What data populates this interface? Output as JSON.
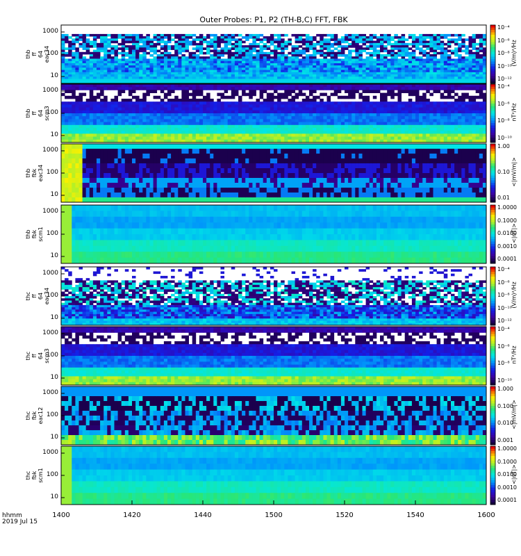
{
  "chart_data": {
    "type": "heatmap",
    "title": "Outer Probes: P1, P2 (TH-B,C) FFT, FBK",
    "x_axis": {
      "ticks": [
        "1400",
        "1420",
        "1440",
        "1500",
        "1520",
        "1540",
        "1600"
      ],
      "header_lines": [
        "hhmm",
        "2019 Jul 15"
      ]
    },
    "panels": [
      {
        "id": "thb-ff-eac34",
        "label_lines": [
          "thb",
          "ff",
          "64",
          "eac34"
        ],
        "y_ticks": [
          "1000",
          "100",
          "10"
        ],
        "colorbar_ticks": [
          "10⁻⁴",
          "10⁻⁶",
          "10⁻⁸",
          "10⁻¹⁰",
          "10⁻¹²"
        ],
        "colorbar_unit": "(V/m)²/Hz",
        "style": "eff"
      },
      {
        "id": "thb-ff-scm3",
        "label_lines": [
          "thb",
          "ff",
          "64",
          "scm3"
        ],
        "y_ticks": [
          "1000",
          "100",
          "10"
        ],
        "colorbar_ticks": [
          "10⁻⁴",
          "10⁻⁶",
          "10⁻⁸",
          "10⁻¹⁰"
        ],
        "colorbar_unit": "nT²/Hz",
        "style": "scm"
      },
      {
        "id": "thb-fbk-eac34",
        "label_lines": [
          "thb",
          "fbk",
          "eac34"
        ],
        "y_ticks": [
          "1000",
          "100",
          "10"
        ],
        "colorbar_ticks": [
          "1.00",
          "0.10",
          "0.01"
        ],
        "colorbar_unit": "<|mV/m|>",
        "style": "fbk_e"
      },
      {
        "id": "thb-fbk-scm1",
        "label_lines": [
          "thb",
          "fbk",
          "scm1"
        ],
        "y_ticks": [
          "1000",
          "100",
          "10"
        ],
        "colorbar_ticks": [
          "1.0000",
          "0.1000",
          "0.0100",
          "0.0010",
          "0.0001"
        ],
        "colorbar_unit": "<|nT|>",
        "style": "fbk_b"
      },
      {
        "id": "thc-ff-eac34",
        "label_lines": [
          "thc",
          "ff",
          "64",
          "eac34"
        ],
        "y_ticks": [
          "1000",
          "100",
          "10"
        ],
        "colorbar_ticks": [
          "10⁻⁴",
          "10⁻⁶",
          "10⁻⁸",
          "10⁻¹⁰",
          "10⁻¹²"
        ],
        "colorbar_unit": "(V/m)²/Hz",
        "style": "eff2"
      },
      {
        "id": "thc-ff-scm3",
        "label_lines": [
          "thc",
          "ff",
          "64",
          "scm3"
        ],
        "y_ticks": [
          "1000",
          "100",
          "10"
        ],
        "colorbar_ticks": [
          "10⁻⁴",
          "10⁻⁶",
          "10⁻⁸",
          "10⁻¹⁰"
        ],
        "colorbar_unit": "nT²/Hz",
        "style": "scm"
      },
      {
        "id": "thc-fbk-eac12",
        "label_lines": [
          "thc",
          "fbk",
          "eac12"
        ],
        "y_ticks": [
          "1000",
          "100",
          "10"
        ],
        "colorbar_ticks": [
          "1.000",
          "0.100",
          "0.010",
          "0.001"
        ],
        "colorbar_unit": "<|mV/m|>",
        "style": "fbk_e2"
      },
      {
        "id": "thc-fbk-scm1",
        "label_lines": [
          "thc",
          "fbk",
          "scm1"
        ],
        "y_ticks": [
          "1000",
          "100",
          "10"
        ],
        "colorbar_ticks": [
          "1.0000",
          "0.1000",
          "0.0100",
          "0.0010",
          "0.0001"
        ],
        "colorbar_unit": "<|nT|>",
        "style": "fbk_b"
      }
    ]
  }
}
